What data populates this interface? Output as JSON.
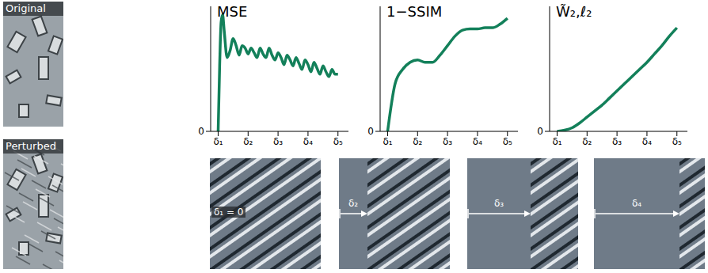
{
  "chart_data": [
    {
      "type": "line",
      "title": "MSE",
      "color": "#13805a",
      "x": [
        1,
        1.05,
        1.1,
        1.15,
        1.2,
        1.3,
        1.4,
        1.5,
        1.6,
        1.7,
        1.8,
        1.9,
        2.0,
        2.1,
        2.2,
        2.3,
        2.4,
        2.5,
        2.6,
        2.7,
        2.8,
        2.9,
        3.0,
        3.1,
        3.2,
        3.3,
        3.4,
        3.5,
        3.6,
        3.7,
        3.8,
        3.9,
        4.0,
        4.1,
        4.2,
        4.3,
        4.4,
        4.5,
        4.6,
        4.7,
        4.8,
        4.9,
        5.0
      ],
      "values": [
        0,
        0.55,
        0.92,
        0.98,
        0.85,
        0.62,
        0.68,
        0.78,
        0.72,
        0.64,
        0.72,
        0.7,
        0.65,
        0.7,
        0.66,
        0.62,
        0.7,
        0.65,
        0.62,
        0.7,
        0.64,
        0.6,
        0.66,
        0.62,
        0.56,
        0.64,
        0.6,
        0.55,
        0.62,
        0.57,
        0.52,
        0.6,
        0.56,
        0.5,
        0.58,
        0.53,
        0.48,
        0.55,
        0.5,
        0.46,
        0.52,
        0.48,
        0.48
      ],
      "xlim": [
        0.75,
        5.35
      ],
      "xticks": [
        {
          "value": 1,
          "label": "δ₁"
        },
        {
          "value": 2,
          "label": "δ₂"
        },
        {
          "value": 3,
          "label": "δ₃"
        },
        {
          "value": 4,
          "label": "δ₄"
        },
        {
          "value": 5,
          "label": "δ₅"
        }
      ],
      "ylim": [
        0,
        1.05
      ],
      "yticks": [
        0
      ]
    },
    {
      "type": "line",
      "title": "1−SSIM",
      "color": "#13805a",
      "x": [
        1,
        1.25,
        1.5,
        1.75,
        2,
        2.25,
        2.5,
        2.75,
        3,
        3.25,
        3.5,
        3.75,
        4,
        4.25,
        4.5,
        4.75,
        5
      ],
      "values": [
        0,
        0.4,
        0.52,
        0.58,
        0.6,
        0.58,
        0.58,
        0.64,
        0.72,
        0.8,
        0.85,
        0.86,
        0.86,
        0.87,
        0.87,
        0.9,
        0.95
      ],
      "xlim": [
        0.75,
        5.35
      ],
      "xticks": [
        {
          "value": 1,
          "label": "δ₁"
        },
        {
          "value": 2,
          "label": "δ₂"
        },
        {
          "value": 3,
          "label": "δ₃"
        },
        {
          "value": 4,
          "label": "δ₄"
        },
        {
          "value": 5,
          "label": "δ₅"
        }
      ],
      "ylim": [
        0,
        1.05
      ],
      "yticks": [
        0
      ]
    },
    {
      "type": "line",
      "title": "W̃₂,ℓ₂",
      "color": "#13805a",
      "x": [
        1,
        1.25,
        1.5,
        1.75,
        2,
        2.25,
        2.5,
        2.75,
        3,
        3.25,
        3.5,
        3.75,
        4,
        4.25,
        4.5,
        4.75,
        5
      ],
      "values": [
        0,
        0.01,
        0.03,
        0.07,
        0.12,
        0.17,
        0.22,
        0.28,
        0.34,
        0.4,
        0.46,
        0.52,
        0.58,
        0.65,
        0.72,
        0.8,
        0.87
      ],
      "xlim": [
        0.75,
        5.35
      ],
      "xticks": [
        {
          "value": 1,
          "label": "δ₁"
        },
        {
          "value": 2,
          "label": "δ₂"
        },
        {
          "value": 3,
          "label": "δ₃"
        },
        {
          "value": 4,
          "label": "δ₄"
        },
        {
          "value": 5,
          "label": "δ₅"
        }
      ],
      "ylim": [
        0,
        1.05
      ],
      "yticks": [
        0
      ]
    }
  ],
  "images": {
    "original": "Original",
    "perturbed": "Perturbed",
    "shifts": [
      "δ₁ = 0",
      "δ₂",
      "δ₃",
      "δ₄"
    ]
  }
}
